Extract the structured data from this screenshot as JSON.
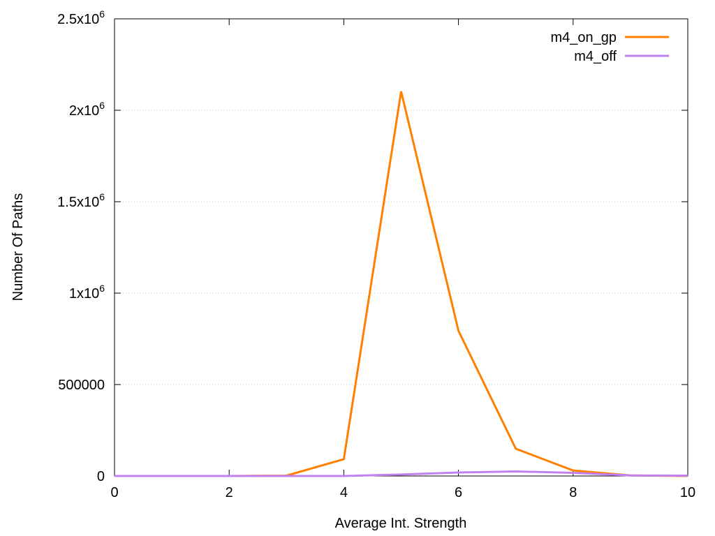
{
  "chart_data": {
    "type": "line",
    "title": "",
    "xlabel": "Average Int. Strength",
    "ylabel": "Number Of Paths",
    "xlim": [
      0,
      10
    ],
    "ylim": [
      0,
      2500000
    ],
    "grid": true,
    "legend_position": "top-right",
    "x_ticks": [
      {
        "v": 0,
        "label": "0"
      },
      {
        "v": 2,
        "label": "2"
      },
      {
        "v": 4,
        "label": "4"
      },
      {
        "v": 6,
        "label": "6"
      },
      {
        "v": 8,
        "label": "8"
      },
      {
        "v": 10,
        "label": "10"
      }
    ],
    "y_ticks": [
      {
        "v": 0,
        "label": "0",
        "sup": ""
      },
      {
        "v": 500000,
        "label": "500000",
        "sup": ""
      },
      {
        "v": 1000000,
        "label": "1x10",
        "sup": "6"
      },
      {
        "v": 1500000,
        "label": "1.5x10",
        "sup": "6"
      },
      {
        "v": 2000000,
        "label": "2x10",
        "sup": "6"
      },
      {
        "v": 2500000,
        "label": "2.5x10",
        "sup": "6"
      }
    ],
    "x": [
      0,
      1,
      2,
      3,
      4,
      5,
      6,
      7,
      8,
      9,
      10
    ],
    "series": [
      {
        "name": "m4_on_gp",
        "color": "#ff8000",
        "values": [
          0,
          0,
          0,
          2000,
          92000,
          2103000,
          794000,
          149000,
          30000,
          3000,
          0
        ]
      },
      {
        "name": "m4_off",
        "color": "#c080f0",
        "values": [
          0,
          0,
          0,
          0,
          0,
          8000,
          19000,
          25000,
          17000,
          3000,
          2000
        ]
      }
    ]
  }
}
